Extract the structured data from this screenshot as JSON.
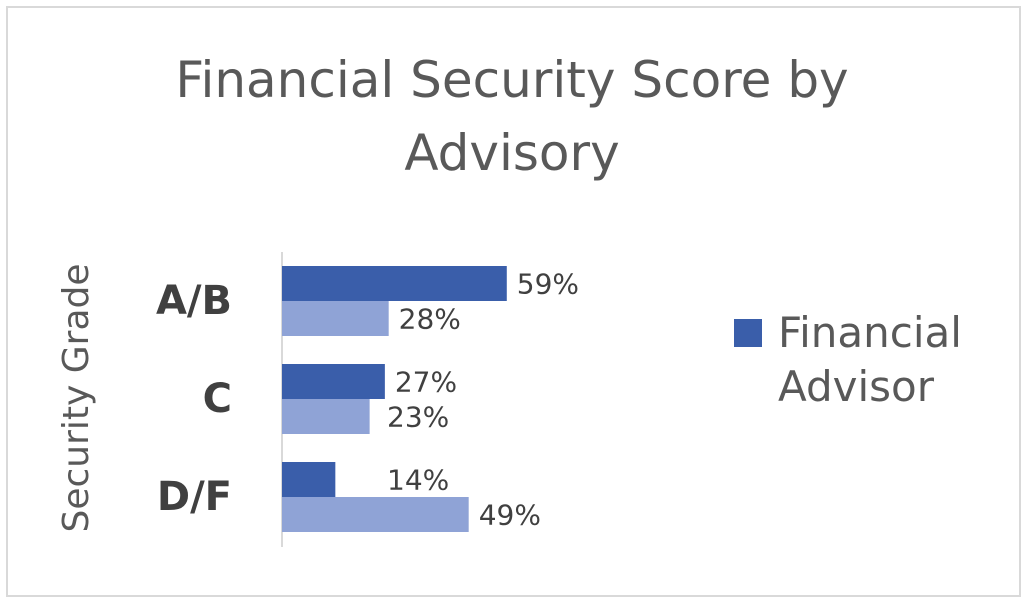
{
  "chart_data": {
    "type": "bar",
    "orientation": "horizontal",
    "title": "Financial Security Score by Advisory",
    "ylabel": "Security Grade",
    "xlabel": "",
    "categories": [
      "A/B",
      "C",
      "D/F"
    ],
    "series": [
      {
        "name": "Financial Advisor",
        "values": [
          59,
          27,
          14
        ],
        "labels": [
          "59%",
          "27%",
          "14%"
        ],
        "color": "#3a5eaa"
      },
      {
        "values": [
          28,
          23,
          49
        ],
        "labels": [
          "28%",
          "23%",
          "49%"
        ],
        "color": "#8fa3d6"
      }
    ],
    "xlim": [
      0,
      100
    ],
    "value_unit": "%",
    "grid": false,
    "legend": {
      "position": "right",
      "entries": [
        "Financial Advisor"
      ]
    }
  }
}
